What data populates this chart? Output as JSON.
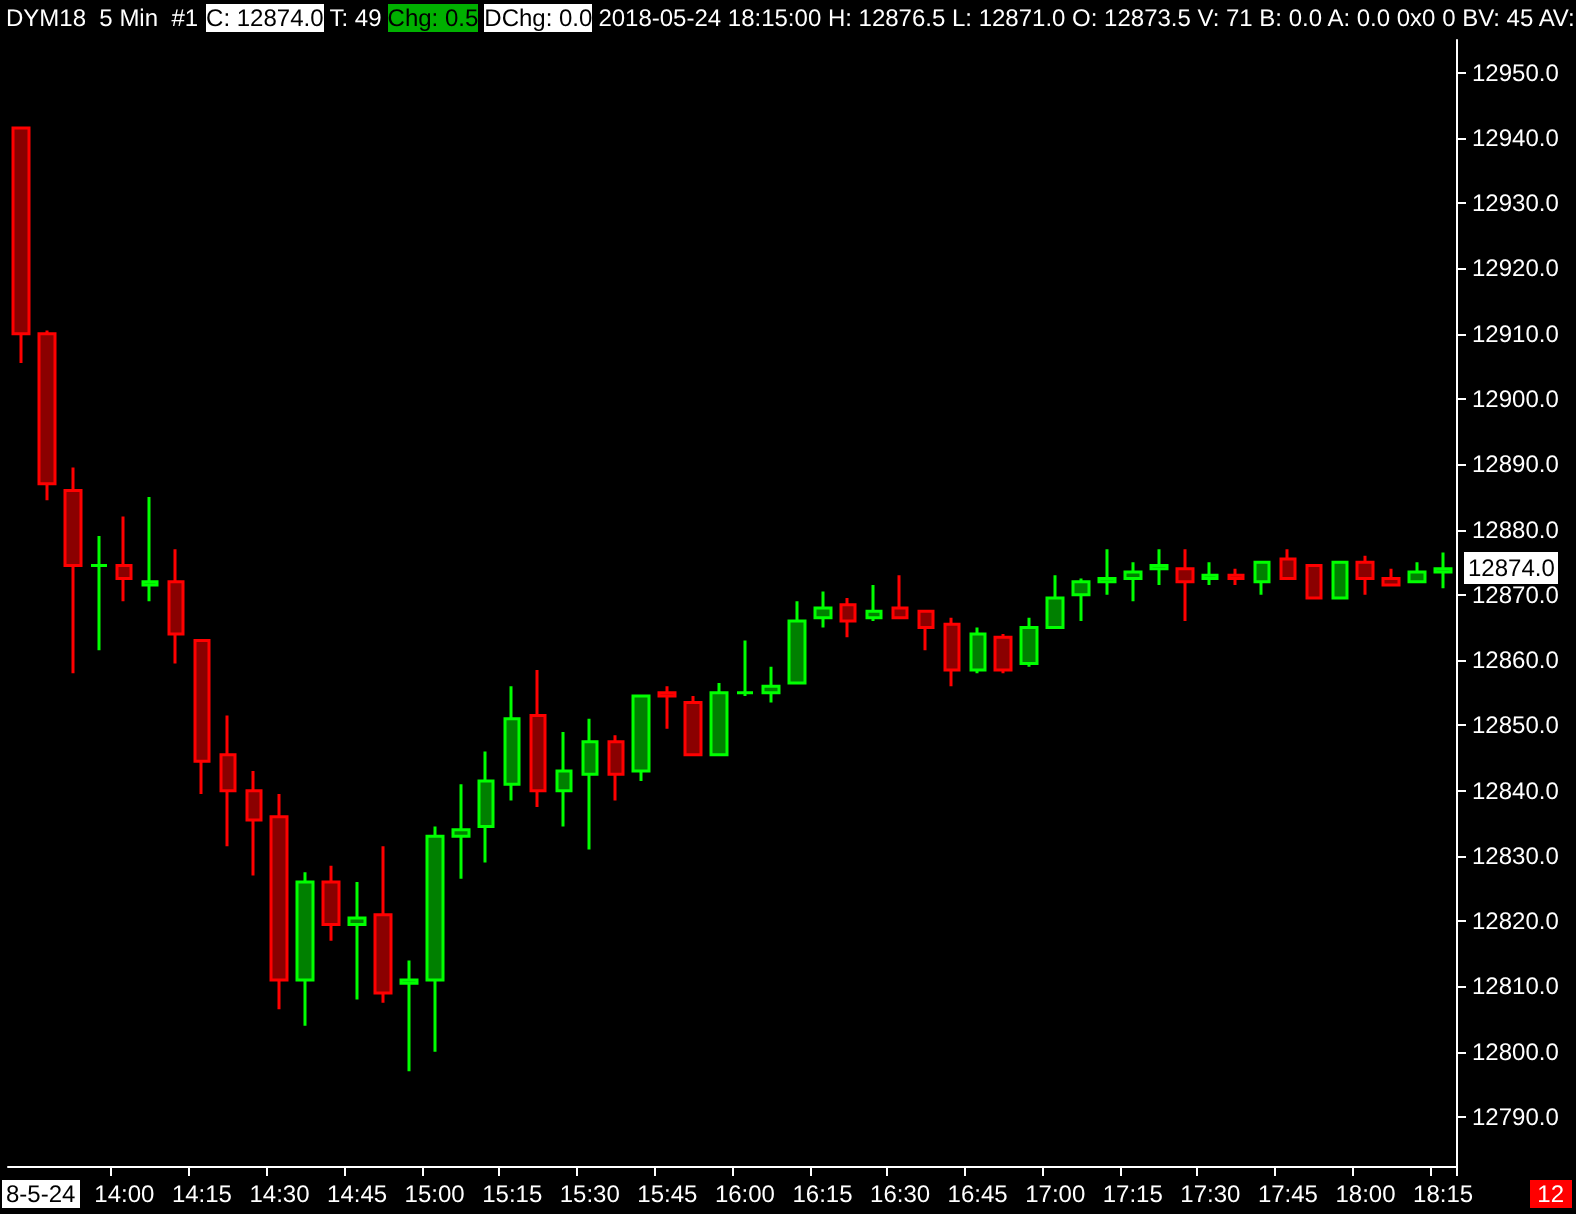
{
  "chart_data": {
    "type": "candlestick",
    "title": "DYM18  5 Min  #1",
    "annotations": [
      "C: 12874.0",
      "T: 49",
      "Chg: 0.5",
      "DChg: 0.0",
      "2018-05-24 18:15:00 H: 12876.5 L: 12871.0 O: 12873.5 V: 71 B: 0.0 A: 0.0 0x0 0 BV: 45 AV:",
      "8-5-24",
      "12",
      "12874.0"
    ],
    "categories": [
      null,
      null,
      null,
      null,
      "14:00",
      null,
      null,
      "14:15",
      null,
      null,
      "14:30",
      null,
      null,
      "14:45",
      null,
      null,
      "15:00",
      null,
      null,
      "15:15",
      null,
      null,
      "15:30",
      null,
      null,
      "15:45",
      null,
      null,
      "16:00",
      null,
      null,
      "16:15",
      null,
      null,
      "16:30",
      null,
      null,
      "16:45",
      null,
      null,
      "17:00",
      null,
      null,
      "17:15",
      null,
      null,
      "17:30",
      null,
      null,
      "17:45",
      null,
      null,
      "18:00",
      null,
      null,
      "18:15"
    ],
    "ohlc": [
      [
        12941.5,
        12941.5,
        12905.5,
        12910
      ],
      [
        12910,
        12910.5,
        12884.5,
        12887
      ],
      [
        12886,
        12889.5,
        12858,
        12874.5
      ],
      [
        12874.5,
        12879,
        12861.5,
        12874.5
      ],
      [
        12874.5,
        12882,
        12869,
        12872.5
      ],
      [
        12871.5,
        12885,
        12869,
        12872
      ],
      [
        12872,
        12877,
        12859.5,
        12864
      ],
      [
        12863,
        12863,
        12839.5,
        12844.5
      ],
      [
        12845.5,
        12851.5,
        12831.5,
        12840
      ],
      [
        12840,
        12843,
        12827,
        12835.5
      ],
      [
        12836,
        12839.5,
        12806.5,
        12811
      ],
      [
        12811,
        12827.5,
        12804,
        12826
      ],
      [
        12826,
        12828.5,
        12817,
        12819.5
      ],
      [
        12819.5,
        12826,
        12808,
        12820.5
      ],
      [
        12821,
        12831.5,
        12807.5,
        12809
      ],
      [
        12810.5,
        12814,
        12797,
        12811
      ],
      [
        12811,
        12834.5,
        12800,
        12833
      ],
      [
        12833,
        12841,
        12826.5,
        12834
      ],
      [
        12834.5,
        12846,
        12829,
        12841.5
      ],
      [
        12841,
        12856,
        12838.5,
        12851
      ],
      [
        12851.5,
        12858.5,
        12837.5,
        12840
      ],
      [
        12840,
        12849,
        12834.5,
        12843
      ],
      [
        12842.5,
        12851,
        12831,
        12847.5
      ],
      [
        12847.5,
        12848.5,
        12838.5,
        12842.5
      ],
      [
        12843,
        12854.5,
        12841.5,
        12854.5
      ],
      [
        12855,
        12856,
        12849.5,
        12854.5
      ],
      [
        12853.5,
        12854.5,
        12845.5,
        12845.5
      ],
      [
        12845.5,
        12856.5,
        12845.5,
        12855
      ],
      [
        12855,
        12863,
        12854.5,
        12855
      ],
      [
        12855,
        12859,
        12853.5,
        12856
      ],
      [
        12856.5,
        12869,
        12856.5,
        12866
      ],
      [
        12866.5,
        12870.5,
        12865,
        12868
      ],
      [
        12868.5,
        12869.5,
        12863.5,
        12866
      ],
      [
        12866.5,
        12871.5,
        12866,
        12867.5
      ],
      [
        12868,
        12873,
        12866.5,
        12866.5
      ],
      [
        12867.5,
        12867.5,
        12861.5,
        12865
      ],
      [
        12865.5,
        12866.5,
        12856,
        12858.5
      ],
      [
        12858.5,
        12865,
        12858,
        12864
      ],
      [
        12863.5,
        12864,
        12858,
        12858.5
      ],
      [
        12859.5,
        12866.5,
        12859,
        12865
      ],
      [
        12865,
        12873,
        12865,
        12869.5
      ],
      [
        12870,
        12872.5,
        12866,
        12872
      ],
      [
        12872,
        12877,
        12870,
        12872.5
      ],
      [
        12872.5,
        12875,
        12869,
        12873.5
      ],
      [
        12874,
        12877,
        12871.5,
        12874.5
      ],
      [
        12874,
        12877,
        12866,
        12872
      ],
      [
        12872.5,
        12875,
        12871.5,
        12873
      ],
      [
        12873,
        12874,
        12871.5,
        12872.5
      ],
      [
        12872,
        12875,
        12870,
        12875
      ],
      [
        12875.5,
        12877,
        12872.5,
        12872.5
      ],
      [
        12874.5,
        12874.5,
        12869.5,
        12869.5
      ],
      [
        12869.5,
        12875,
        12869.5,
        12875
      ],
      [
        12875,
        12876,
        12870,
        12872.5
      ],
      [
        12872.5,
        12874,
        12871.5,
        12871.5
      ],
      [
        12872,
        12875,
        12872,
        12873.5
      ],
      [
        12873.5,
        12876.5,
        12871,
        12874
      ]
    ],
    "ylim": [
      12782.5,
      12955
    ],
    "yticks": [
      {
        "value": 12790,
        "label": "12790.0"
      },
      {
        "value": 12800,
        "label": "12800.0"
      },
      {
        "value": 12810,
        "label": "12810.0"
      },
      {
        "value": 12820,
        "label": "12820.0"
      },
      {
        "value": 12830,
        "label": "12830.0"
      },
      {
        "value": 12840,
        "label": "12840.0"
      },
      {
        "value": 12850,
        "label": "12850.0"
      },
      {
        "value": 12860,
        "label": "12860.0"
      },
      {
        "value": 12870,
        "label": "12870.0"
      },
      {
        "value": 12880,
        "label": "12880.0"
      },
      {
        "value": 12890,
        "label": "12890.0"
      },
      {
        "value": 12900,
        "label": "12900.0"
      },
      {
        "value": 12910,
        "label": "12910.0"
      },
      {
        "value": 12920,
        "label": "12920.0"
      },
      {
        "value": 12930,
        "label": "12930.0"
      },
      {
        "value": 12940,
        "label": "12940.0"
      },
      {
        "value": 12950,
        "label": "12950.0"
      }
    ]
  }
}
